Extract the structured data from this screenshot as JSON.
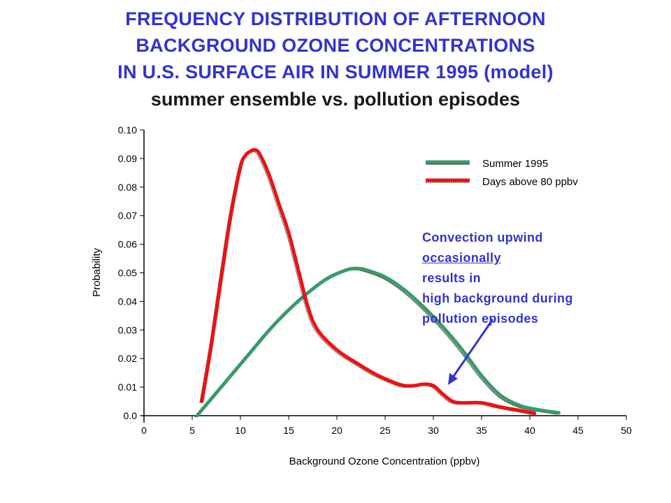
{
  "title": {
    "lines": [
      "FREQUENCY DISTRIBUTION OF AFTERNOON",
      "BACKGROUND OZONE CONCENTRATIONS",
      "IN U.S. SURFACE AIR IN SUMMER 1995 (model)"
    ],
    "subtitle": "summer ensemble vs. pollution episodes"
  },
  "annotation": {
    "line1": "Convection upwind",
    "line2_underlined": "occasionally",
    "line2_rest": " results in",
    "line3": "high background during",
    "line4": "pollution episodes"
  },
  "colors": {
    "summer": "#3a9a6a",
    "episodes": "#ee1111",
    "title": "#3333cc",
    "annotation": "#3333cc",
    "arrow": "#3333cc"
  },
  "chart_data": {
    "type": "line",
    "xlabel": "Background Ozone Concentration (ppbv)",
    "ylabel": "Probability",
    "xlim": [
      0,
      50
    ],
    "ylim": [
      0,
      0.1
    ],
    "x_ticks": [
      "0",
      "5",
      "10",
      "15",
      "20",
      "25",
      "30",
      "35",
      "40",
      "45",
      "50"
    ],
    "y_ticks": [
      "0.0",
      "0.01",
      "0.02",
      "0.03",
      "0.04",
      "0.05",
      "0.06",
      "0.07",
      "0.08",
      "0.09",
      "0.10"
    ],
    "legend_position": "top-right",
    "series": [
      {
        "name": "Summer 1995",
        "color": "#3a9a6a",
        "x": [
          5.5,
          7,
          9,
          11,
          13,
          15,
          17,
          19,
          21,
          22,
          23,
          25,
          27,
          29,
          31,
          33,
          35,
          37,
          39,
          41,
          43
        ],
        "y": [
          0.0,
          0.006,
          0.014,
          0.022,
          0.03,
          0.037,
          0.043,
          0.048,
          0.051,
          0.0515,
          0.051,
          0.0485,
          0.044,
          0.038,
          0.031,
          0.023,
          0.014,
          0.007,
          0.0035,
          0.002,
          0.001
        ]
      },
      {
        "name": "Days above 80 ppbv",
        "color": "#ee1111",
        "x": [
          6,
          7,
          8,
          9,
          10,
          10.5,
          11,
          11.5,
          12,
          13,
          14,
          15,
          16,
          17,
          18,
          20,
          22,
          24,
          26,
          27,
          28,
          29,
          30,
          31,
          32,
          33,
          35,
          37,
          39,
          40.5
        ],
        "y": [
          0.005,
          0.025,
          0.048,
          0.07,
          0.087,
          0.091,
          0.0925,
          0.093,
          0.0915,
          0.084,
          0.074,
          0.064,
          0.051,
          0.038,
          0.03,
          0.023,
          0.0185,
          0.0145,
          0.0115,
          0.0105,
          0.0105,
          0.011,
          0.0105,
          0.0075,
          0.005,
          0.0045,
          0.0045,
          0.003,
          0.0018,
          0.0008
        ]
      }
    ]
  }
}
